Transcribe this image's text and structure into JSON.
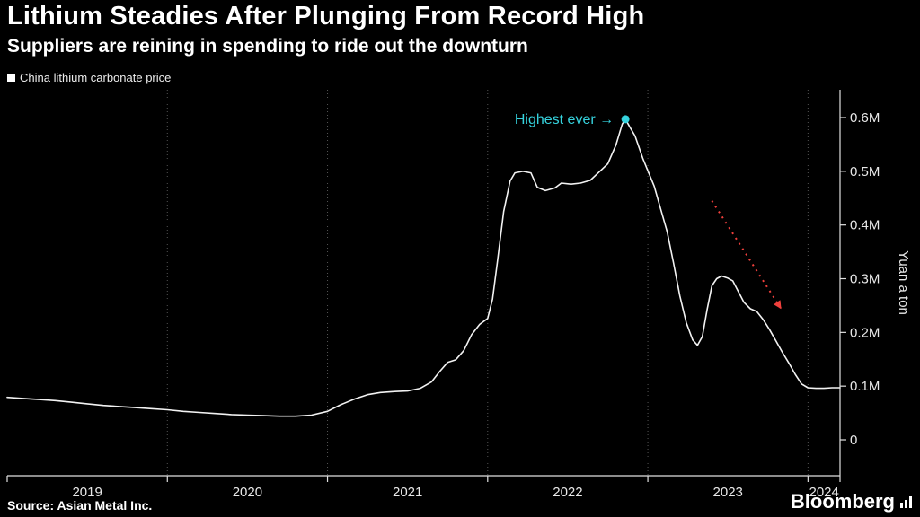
{
  "chart_data": {
    "type": "line",
    "title": "Lithium Steadies After Plunging From Record High",
    "subtitle": "Suppliers are reining in spending to ride out the downturn",
    "xlabel": "",
    "ylabel": "Yuan a ton",
    "x_range": [
      2019.0,
      2024.2
    ],
    "y_range": [
      0,
      0.65
    ],
    "x_ticks": [
      2019,
      2020,
      2021,
      2022,
      2023,
      2024
    ],
    "x_tick_labels": [
      "2019",
      "2020",
      "2021",
      "2022",
      "2023",
      "2024"
    ],
    "y_ticks": [
      0,
      0.1,
      0.2,
      0.3,
      0.4,
      0.5,
      0.6
    ],
    "y_tick_labels": [
      "0",
      "0.1M",
      "0.2M",
      "0.3M",
      "0.4M",
      "0.5M",
      "0.6M"
    ],
    "grid": "vertical-dotted",
    "legend_position": "top-left",
    "series": [
      {
        "name": "China lithium carbonate price",
        "color": "#f2f2f2",
        "points": [
          [
            2019.0,
            0.079
          ],
          [
            2019.1,
            0.077
          ],
          [
            2019.2,
            0.075
          ],
          [
            2019.3,
            0.073
          ],
          [
            2019.4,
            0.07
          ],
          [
            2019.5,
            0.067
          ],
          [
            2019.6,
            0.064
          ],
          [
            2019.7,
            0.062
          ],
          [
            2019.8,
            0.06
          ],
          [
            2019.9,
            0.058
          ],
          [
            2020.0,
            0.056
          ],
          [
            2020.1,
            0.053
          ],
          [
            2020.2,
            0.051
          ],
          [
            2020.3,
            0.049
          ],
          [
            2020.4,
            0.047
          ],
          [
            2020.5,
            0.046
          ],
          [
            2020.6,
            0.045
          ],
          [
            2020.7,
            0.044
          ],
          [
            2020.8,
            0.044
          ],
          [
            2020.9,
            0.046
          ],
          [
            2021.0,
            0.053
          ],
          [
            2021.08,
            0.065
          ],
          [
            2021.17,
            0.076
          ],
          [
            2021.25,
            0.084
          ],
          [
            2021.33,
            0.088
          ],
          [
            2021.42,
            0.09
          ],
          [
            2021.5,
            0.091
          ],
          [
            2021.58,
            0.096
          ],
          [
            2021.65,
            0.108
          ],
          [
            2021.7,
            0.127
          ],
          [
            2021.75,
            0.144
          ],
          [
            2021.8,
            0.149
          ],
          [
            2021.85,
            0.166
          ],
          [
            2021.9,
            0.196
          ],
          [
            2021.95,
            0.215
          ],
          [
            2022.0,
            0.226
          ],
          [
            2022.03,
            0.262
          ],
          [
            2022.06,
            0.33
          ],
          [
            2022.1,
            0.425
          ],
          [
            2022.14,
            0.482
          ],
          [
            2022.17,
            0.497
          ],
          [
            2022.22,
            0.5
          ],
          [
            2022.27,
            0.497
          ],
          [
            2022.31,
            0.47
          ],
          [
            2022.36,
            0.464
          ],
          [
            2022.42,
            0.469
          ],
          [
            2022.46,
            0.478
          ],
          [
            2022.52,
            0.476
          ],
          [
            2022.58,
            0.478
          ],
          [
            2022.64,
            0.483
          ],
          [
            2022.7,
            0.5
          ],
          [
            2022.75,
            0.514
          ],
          [
            2022.8,
            0.548
          ],
          [
            2022.84,
            0.588
          ],
          [
            2022.86,
            0.597
          ],
          [
            2022.89,
            0.581
          ],
          [
            2022.92,
            0.566
          ],
          [
            2022.97,
            0.523
          ],
          [
            2023.0,
            0.501
          ],
          [
            2023.04,
            0.472
          ],
          [
            2023.08,
            0.43
          ],
          [
            2023.12,
            0.388
          ],
          [
            2023.16,
            0.33
          ],
          [
            2023.2,
            0.268
          ],
          [
            2023.24,
            0.218
          ],
          [
            2023.28,
            0.186
          ],
          [
            2023.31,
            0.176
          ],
          [
            2023.34,
            0.192
          ],
          [
            2023.37,
            0.242
          ],
          [
            2023.4,
            0.287
          ],
          [
            2023.43,
            0.3
          ],
          [
            2023.46,
            0.305
          ],
          [
            2023.5,
            0.301
          ],
          [
            2023.53,
            0.296
          ],
          [
            2023.56,
            0.279
          ],
          [
            2023.6,
            0.256
          ],
          [
            2023.64,
            0.244
          ],
          [
            2023.68,
            0.239
          ],
          [
            2023.72,
            0.224
          ],
          [
            2023.76,
            0.205
          ],
          [
            2023.8,
            0.184
          ],
          [
            2023.84,
            0.163
          ],
          [
            2023.88,
            0.143
          ],
          [
            2023.92,
            0.122
          ],
          [
            2023.96,
            0.104
          ],
          [
            2024.0,
            0.097
          ],
          [
            2024.05,
            0.096
          ],
          [
            2024.1,
            0.096
          ],
          [
            2024.15,
            0.097
          ],
          [
            2024.2,
            0.097
          ]
        ]
      }
    ],
    "annotations": {
      "peak": {
        "text": "Highest ever →",
        "x": 2022.86,
        "y": 0.597,
        "color": "#36d3de"
      },
      "trend_arrow": {
        "from": [
          2023.4,
          0.445
        ],
        "to": [
          2023.83,
          0.245
        ],
        "color": "#f0403c",
        "style": "dotted"
      }
    }
  },
  "footer": {
    "source": "Source: Asian Metal Inc.",
    "brand": "Bloomberg"
  }
}
